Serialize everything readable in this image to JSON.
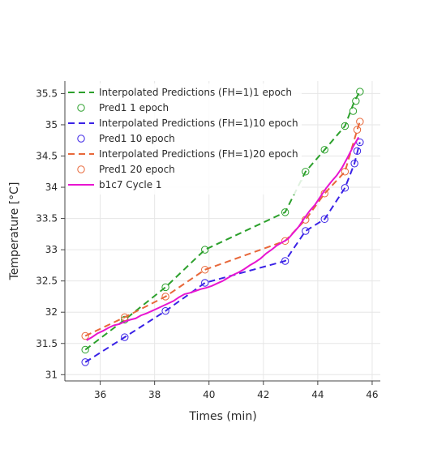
{
  "chart_data": {
    "type": "line",
    "title": "",
    "xlabel": "Times (min)",
    "ylabel": "Temperature [°C]",
    "xlim": [
      34.7,
      46.3
    ],
    "ylim": [
      30.9,
      35.7
    ],
    "xticks": [
      36,
      38,
      40,
      42,
      44,
      46
    ],
    "xtick_labels": [
      "36",
      "38",
      "40",
      "42",
      "44",
      "46"
    ],
    "yticks": [
      31,
      31.5,
      32,
      32.5,
      33,
      33.5,
      34,
      34.5,
      35,
      35.5
    ],
    "ytick_labels": [
      "31",
      "31.5",
      "32",
      "32.5",
      "33",
      "33.5",
      "34",
      "34.5",
      "35",
      "35.5"
    ],
    "grid": true,
    "legend_position": "top-left",
    "series": [
      {
        "name": "Interpolated Predictions (FH=1)1 epoch",
        "kind": "dashed-line",
        "color": "#2ca02c",
        "x": [
          35.45,
          36.9,
          38.4,
          39.85,
          42.8,
          43.55,
          44.25,
          45.0,
          45.35,
          45.55
        ],
        "y": [
          31.4,
          31.88,
          32.4,
          33.0,
          33.6,
          34.25,
          34.6,
          34.98,
          35.38,
          35.53
        ]
      },
      {
        "name": "Pred1 1 epoch",
        "kind": "markers",
        "color": "#2ca02c",
        "x": [
          35.45,
          36.9,
          38.4,
          39.85,
          42.8,
          43.55,
          44.25,
          45.0,
          45.3,
          45.4,
          45.55
        ],
        "y": [
          31.4,
          31.88,
          32.4,
          33.0,
          33.6,
          34.25,
          34.6,
          34.98,
          35.22,
          35.38,
          35.53
        ]
      },
      {
        "name": "Interpolated Predictions (FH=1)10 epoch",
        "kind": "dashed-line",
        "color": "#3a22e6",
        "x": [
          35.45,
          36.9,
          38.4,
          39.85,
          42.8,
          43.55,
          44.25,
          45.0,
          45.35,
          45.55
        ],
        "y": [
          31.2,
          31.6,
          32.02,
          32.47,
          32.82,
          33.3,
          33.49,
          33.99,
          34.38,
          34.72
        ]
      },
      {
        "name": "Pred1 10 epoch",
        "kind": "markers",
        "color": "#3a22e6",
        "x": [
          35.45,
          36.9,
          38.4,
          39.85,
          42.8,
          43.55,
          44.25,
          45.0,
          45.35,
          45.45,
          45.55
        ],
        "y": [
          31.2,
          31.6,
          32.02,
          32.47,
          32.82,
          33.3,
          33.49,
          33.99,
          34.38,
          34.58,
          34.72
        ]
      },
      {
        "name": "Interpolated Predictions (FH=1)20 epoch",
        "kind": "dashed-line",
        "color": "#e8683a",
        "x": [
          35.45,
          36.9,
          38.4,
          39.85,
          42.8,
          43.55,
          44.25,
          45.0,
          45.45,
          45.55
        ],
        "y": [
          31.62,
          31.92,
          32.25,
          32.68,
          33.14,
          33.48,
          33.9,
          34.25,
          34.92,
          35.05
        ]
      },
      {
        "name": "Pred1 20 epoch",
        "kind": "markers",
        "color": "#e8683a",
        "x": [
          35.45,
          36.9,
          38.4,
          39.85,
          42.8,
          43.55,
          44.25,
          45.0,
          45.45,
          45.55
        ],
        "y": [
          31.62,
          31.92,
          32.25,
          32.68,
          33.14,
          33.48,
          33.9,
          34.25,
          34.92,
          35.05
        ]
      },
      {
        "name": "b1c7 Cycle 1",
        "kind": "line",
        "color": "#e815d0",
        "x": [
          35.5,
          35.7,
          35.9,
          36.1,
          36.3,
          36.5,
          36.7,
          36.9,
          37.1,
          37.3,
          37.5,
          37.7,
          37.9,
          38.1,
          38.3,
          38.5,
          38.7,
          38.9,
          39.1,
          39.3,
          39.5,
          39.7,
          39.9,
          40.1,
          40.3,
          40.5,
          40.7,
          40.9,
          41.1,
          41.3,
          41.5,
          41.7,
          41.9,
          42.1,
          42.3,
          42.5,
          42.7,
          42.9,
          43.1,
          43.3,
          43.5,
          43.7,
          43.9,
          44.1,
          44.3,
          44.5,
          44.7,
          44.9,
          45.1,
          45.3,
          45.5
        ],
        "y": [
          31.55,
          31.6,
          31.66,
          31.7,
          31.75,
          31.79,
          31.81,
          31.85,
          31.88,
          31.9,
          31.95,
          31.98,
          32.02,
          32.06,
          32.1,
          32.14,
          32.18,
          32.24,
          32.29,
          32.31,
          32.34,
          32.37,
          32.39,
          32.42,
          32.46,
          32.5,
          32.55,
          32.6,
          32.64,
          32.69,
          32.75,
          32.8,
          32.86,
          32.94,
          33.0,
          33.07,
          33.12,
          33.17,
          33.27,
          33.37,
          33.5,
          33.62,
          33.72,
          33.85,
          33.98,
          34.09,
          34.19,
          34.32,
          34.48,
          34.65,
          34.8
        ]
      }
    ]
  }
}
